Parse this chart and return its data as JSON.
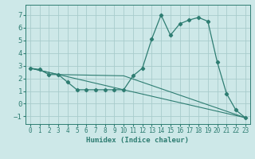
{
  "title": "",
  "xlabel": "Humidex (Indice chaleur)",
  "bg_color": "#cde8e8",
  "grid_color": "#a8cccc",
  "line_color": "#2e7d72",
  "xlim": [
    -0.5,
    23.5
  ],
  "ylim": [
    -1.6,
    7.8
  ],
  "xticks": [
    0,
    1,
    2,
    3,
    4,
    5,
    6,
    7,
    8,
    9,
    10,
    11,
    12,
    13,
    14,
    15,
    16,
    17,
    18,
    19,
    20,
    21,
    22,
    23
  ],
  "yticks": [
    -1,
    0,
    1,
    2,
    3,
    4,
    5,
    6,
    7
  ],
  "series": [
    {
      "x": [
        0,
        1,
        2,
        3,
        4,
        5,
        6,
        7,
        8,
        9,
        10,
        11,
        12,
        13,
        14,
        15,
        16,
        17,
        18,
        19,
        20,
        21,
        22,
        23
      ],
      "y": [
        2.8,
        2.7,
        2.3,
        2.3,
        1.7,
        1.1,
        1.1,
        1.1,
        1.1,
        1.1,
        1.1,
        2.2,
        2.8,
        5.1,
        7.0,
        5.4,
        6.3,
        6.6,
        6.8,
        6.5,
        3.3,
        0.8,
        -0.5,
        -1.1
      ]
    },
    {
      "x": [
        0,
        3,
        10,
        23
      ],
      "y": [
        2.8,
        2.3,
        2.2,
        -1.1
      ]
    },
    {
      "x": [
        0,
        3,
        10,
        23
      ],
      "y": [
        2.8,
        2.3,
        1.1,
        -1.1
      ]
    }
  ]
}
